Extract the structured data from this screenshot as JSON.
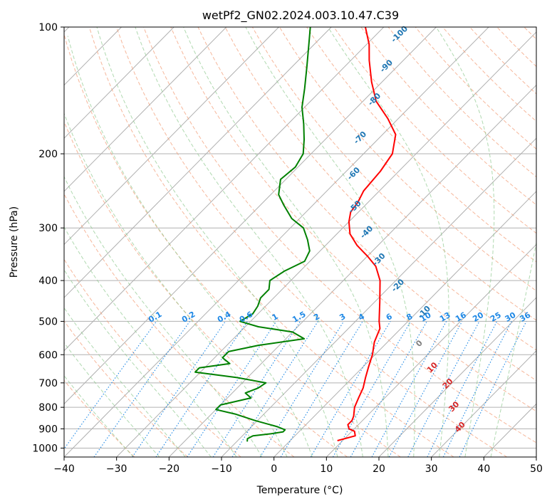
{
  "chart_data": {
    "type": "line",
    "title": "wetPf2_GN02.2024.003.10.47.C39",
    "xlabel": "Temperature (°C)",
    "ylabel": "Pressure (hPa)",
    "xlim": [
      -40,
      50
    ],
    "ylim": [
      1050,
      100
    ],
    "y_scale": "log",
    "grid": true,
    "x_ticks": [
      -40,
      -30,
      -20,
      -10,
      0,
      10,
      20,
      30,
      40,
      50
    ],
    "y_ticks": [
      100,
      200,
      300,
      400,
      500,
      600,
      700,
      800,
      900,
      1000
    ],
    "dry_adiabat_labels": [
      {
        "text": "-100",
        "p": 105,
        "t": -55
      },
      {
        "text": "-90",
        "p": 125,
        "t": -51.5
      },
      {
        "text": "-80",
        "p": 150,
        "t": -47.5
      },
      {
        "text": "-70",
        "p": 185,
        "t": -43
      },
      {
        "text": "-60",
        "p": 225,
        "t": -37.5
      },
      {
        "text": "-50",
        "p": 270,
        "t": -31
      },
      {
        "text": "-40",
        "p": 310,
        "t": -24
      },
      {
        "text": "-30",
        "p": 360,
        "t": -16.5
      },
      {
        "text": "-20",
        "p": 415,
        "t": -8
      },
      {
        "text": "-10",
        "p": 480,
        "t": 2
      }
    ],
    "moist_adiabat_labels": [
      {
        "text": "0",
        "p": 570,
        "t": 7,
        "color": "#808080"
      },
      {
        "text": "10",
        "p": 650,
        "t": 14,
        "color": "#d62728"
      },
      {
        "text": "20",
        "p": 710,
        "t": 20,
        "color": "#d62728"
      },
      {
        "text": "30",
        "p": 805,
        "t": 25.5,
        "color": "#d62728"
      },
      {
        "text": "40",
        "p": 900,
        "t": 30.5,
        "color": "#d62728"
      }
    ],
    "mixing_ratio_labels": [
      "0.1",
      "0.2",
      "0.4",
      "0.6",
      "1",
      "1.5",
      "2",
      "3",
      "4",
      "6",
      "8",
      "10",
      "13",
      "16",
      "20",
      "25",
      "30",
      "36"
    ],
    "mixing_ratio_top_p": 500,
    "series": [
      {
        "color": "#ff0000",
        "points": [
          [
            960,
            9.0
          ],
          [
            935,
            11.5
          ],
          [
            912,
            10.5
          ],
          [
            900,
            9.0
          ],
          [
            880,
            8.0
          ],
          [
            860,
            8.0
          ],
          [
            840,
            7.5
          ],
          [
            800,
            6.0
          ],
          [
            760,
            5.0
          ],
          [
            720,
            4.0
          ],
          [
            680,
            2.5
          ],
          [
            640,
            1.0
          ],
          [
            600,
            -0.5
          ],
          [
            560,
            -2.5
          ],
          [
            520,
            -4.0
          ],
          [
            500,
            -5.5
          ],
          [
            450,
            -9.0
          ],
          [
            400,
            -13.0
          ],
          [
            370,
            -16.5
          ],
          [
            350,
            -20.0
          ],
          [
            330,
            -24.0
          ],
          [
            310,
            -27.5
          ],
          [
            290,
            -30.0
          ],
          [
            275,
            -31.5
          ],
          [
            260,
            -32.0
          ],
          [
            245,
            -33.0
          ],
          [
            220,
            -33.5
          ],
          [
            200,
            -34.5
          ],
          [
            180,
            -37.5
          ],
          [
            165,
            -42.0
          ],
          [
            150,
            -47.5
          ],
          [
            135,
            -52.0
          ],
          [
            120,
            -56.5
          ],
          [
            110,
            -59.5
          ],
          [
            100,
            -63.5
          ]
        ]
      },
      {
        "color": "#008000",
        "points": [
          [
            965,
            -8.0
          ],
          [
            950,
            -8.5
          ],
          [
            935,
            -8.0
          ],
          [
            925,
            -5.0
          ],
          [
            915,
            -3.0
          ],
          [
            905,
            -3.0
          ],
          [
            890,
            -5.0
          ],
          [
            860,
            -10.5
          ],
          [
            830,
            -15.5
          ],
          [
            810,
            -20.0
          ],
          [
            790,
            -20.0
          ],
          [
            760,
            -15.5
          ],
          [
            740,
            -17.5
          ],
          [
            720,
            -16.0
          ],
          [
            700,
            -15.5
          ],
          [
            680,
            -22.0
          ],
          [
            660,
            -31.0
          ],
          [
            645,
            -31.0
          ],
          [
            630,
            -26.0
          ],
          [
            610,
            -28.5
          ],
          [
            590,
            -28.5
          ],
          [
            570,
            -24.0
          ],
          [
            550,
            -16.5
          ],
          [
            530,
            -20.0
          ],
          [
            515,
            -27.5
          ],
          [
            500,
            -32.0
          ],
          [
            480,
            -31.0
          ],
          [
            460,
            -31.5
          ],
          [
            440,
            -32.5
          ],
          [
            420,
            -32.5
          ],
          [
            400,
            -34.0
          ],
          [
            380,
            -33.0
          ],
          [
            360,
            -31.0
          ],
          [
            340,
            -32.0
          ],
          [
            320,
            -34.5
          ],
          [
            300,
            -37.5
          ],
          [
            285,
            -41.5
          ],
          [
            265,
            -45.5
          ],
          [
            250,
            -48.5
          ],
          [
            230,
            -51.0
          ],
          [
            215,
            -50.5
          ],
          [
            200,
            -51.5
          ],
          [
            185,
            -54.0
          ],
          [
            170,
            -57.0
          ],
          [
            155,
            -60.5
          ],
          [
            140,
            -63.5
          ],
          [
            125,
            -67.0
          ],
          [
            110,
            -71.0
          ],
          [
            100,
            -74.0
          ]
        ]
      }
    ]
  }
}
